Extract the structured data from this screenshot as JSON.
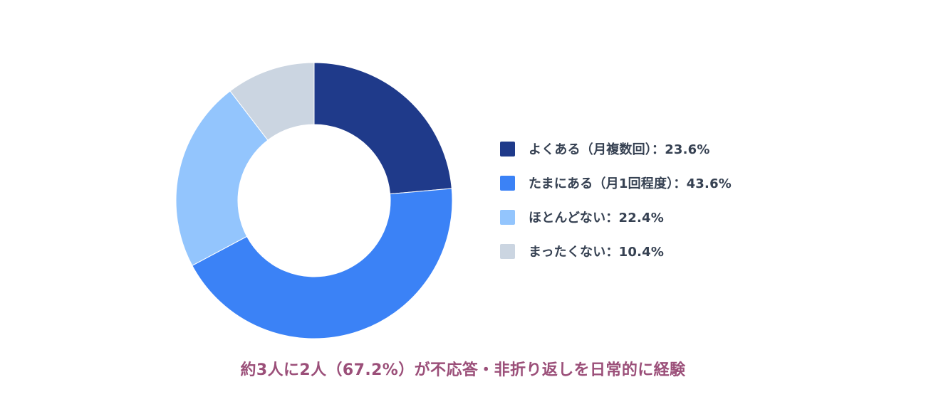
{
  "chart_data": {
    "type": "pie",
    "categories": [
      "よくある（月複数回）",
      "たまにある（月1回程度）",
      "ほとんどない",
      "まったくない"
    ],
    "values": [
      23.6,
      43.6,
      22.4,
      10.4
    ],
    "unit": "%",
    "colors": [
      "#1f3a8a",
      "#3b82f6",
      "#93c5fd",
      "#cbd5e1"
    ],
    "legend": {
      "placement": "right",
      "items": [
        {
          "label": "よくある（月複数回）：23.6%",
          "color": "#1f3a8a"
        },
        {
          "label": "たまにある（月1回程度）：43.6%",
          "color": "#3b82f6"
        },
        {
          "label": "ほとんどない：22.4%",
          "color": "#93c5fd"
        },
        {
          "label": "まったくない：10.4%",
          "color": "#cbd5e1"
        }
      ]
    },
    "caption": "約3人に2人（67.2%）が不応答・非折り返しを日常的に経験"
  }
}
